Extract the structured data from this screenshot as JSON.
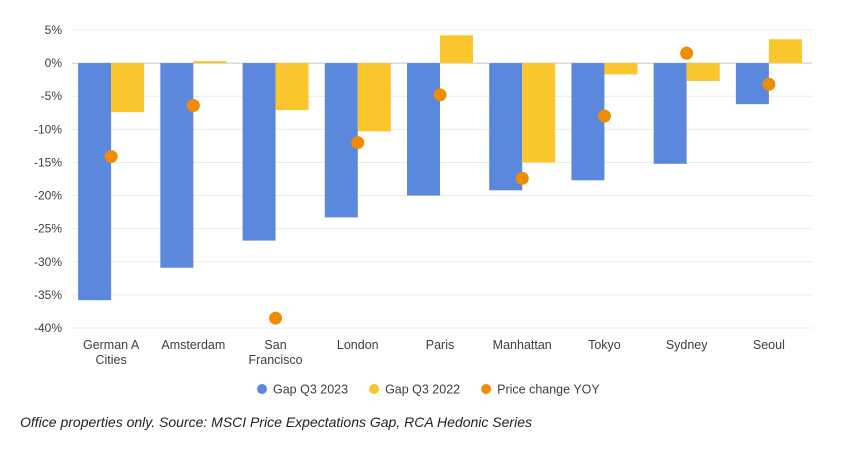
{
  "chart_data": {
    "type": "bar",
    "title": "",
    "xlabel": "",
    "ylabel": "",
    "ylim": [
      -40,
      5
    ],
    "yticks": [
      "5%",
      "0%",
      "-5%",
      "-10%",
      "-15%",
      "-20%",
      "-25%",
      "-30%",
      "-35%",
      "-40%"
    ],
    "ytick_values": [
      5,
      0,
      -5,
      -10,
      -15,
      -20,
      -25,
      -30,
      -35,
      -40
    ],
    "grid": true,
    "legend_placement": "bottom",
    "categories": [
      [
        "German A",
        "Cities"
      ],
      [
        "Amsterdam"
      ],
      [
        "San",
        "Francisco"
      ],
      [
        "London"
      ],
      [
        "Paris"
      ],
      [
        "Manhattan"
      ],
      [
        "Tokyo"
      ],
      [
        "Sydney"
      ],
      [
        "Seoul"
      ]
    ],
    "series": [
      {
        "name": "Gap Q3 2023",
        "kind": "bar",
        "color": "#5b87dc",
        "values": [
          -35.8,
          -30.9,
          -26.8,
          -23.3,
          -20.0,
          -19.2,
          -17.7,
          -15.2,
          -6.2
        ]
      },
      {
        "name": "Gap Q3 2022",
        "kind": "bar",
        "color": "#fbc52c",
        "values": [
          -7.4,
          0.3,
          -7.1,
          -10.3,
          4.2,
          -15.0,
          -1.7,
          -2.7,
          3.6
        ]
      },
      {
        "name": "Price change YOY",
        "kind": "scatter",
        "color": "#f08c00",
        "values": [
          -14.1,
          -6.4,
          -38.5,
          -12.0,
          -4.8,
          -17.4,
          -8.0,
          1.5,
          -3.2
        ]
      }
    ]
  },
  "footnote": "Office properties only. Source: MSCI Price Expectations Gap, RCA Hedonic Series"
}
